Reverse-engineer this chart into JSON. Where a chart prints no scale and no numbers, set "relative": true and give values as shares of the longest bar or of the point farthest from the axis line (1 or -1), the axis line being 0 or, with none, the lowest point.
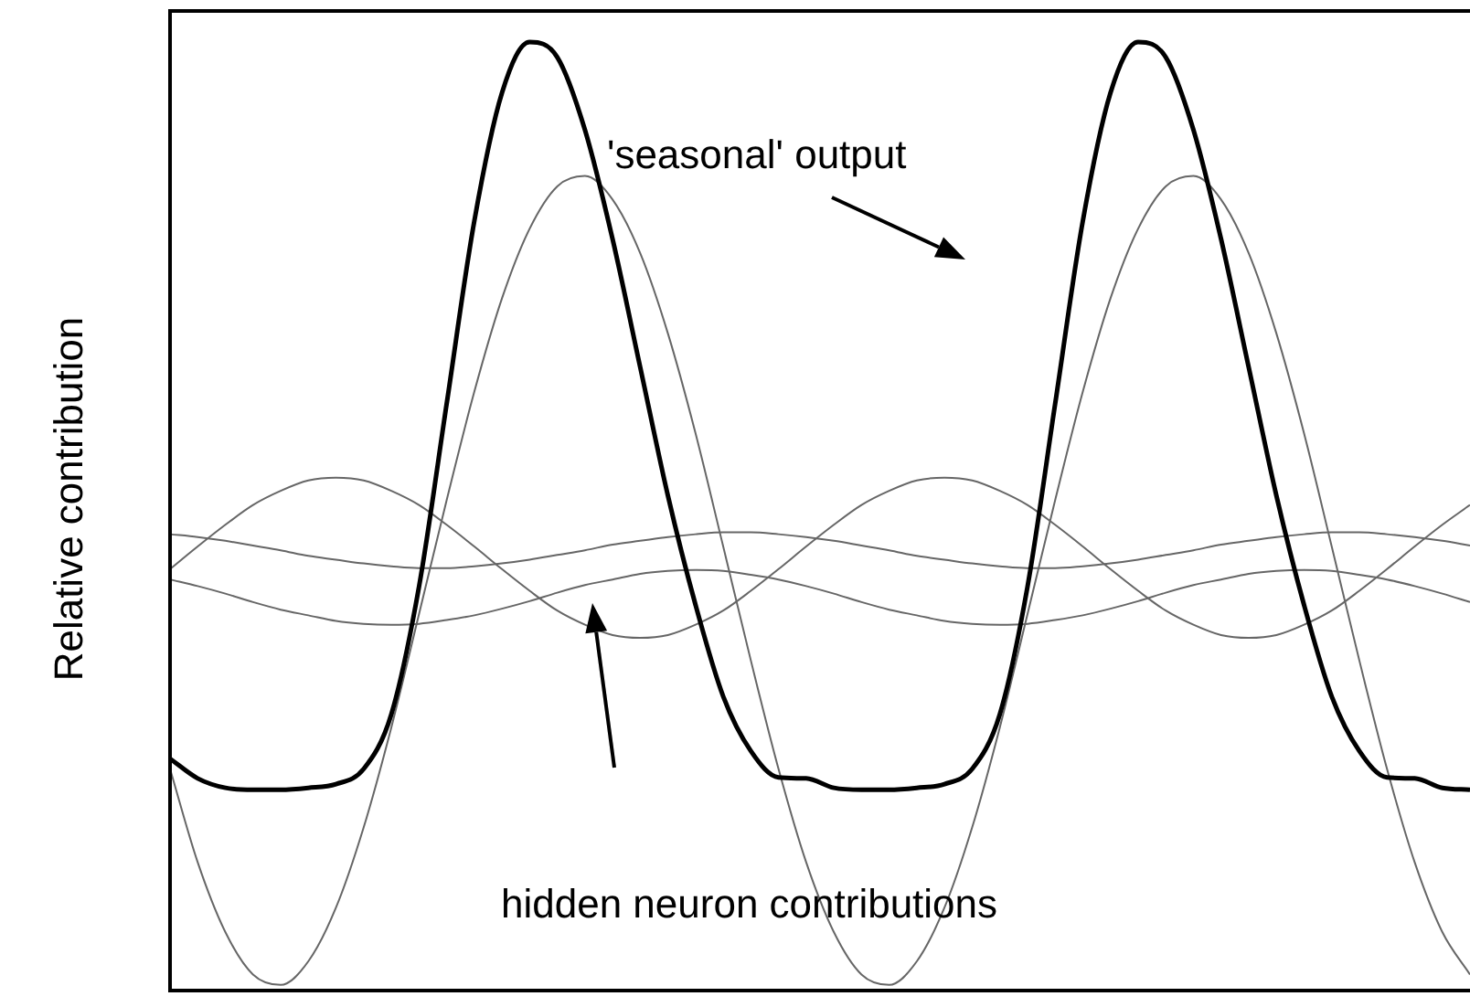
{
  "chart_data": {
    "type": "line",
    "relative": true,
    "ylabel": "Relative contribution",
    "legend": false,
    "grid": false,
    "marker": "none",
    "categories": [
      null,
      null,
      null,
      null,
      null,
      null,
      null,
      null,
      null,
      null,
      null,
      null,
      null,
      null,
      null,
      null,
      null,
      null,
      null,
      null,
      null,
      null,
      null,
      null,
      null,
      null,
      null,
      null,
      null,
      null,
      null,
      null,
      null,
      null,
      null,
      null,
      null,
      null,
      null,
      null,
      null,
      null,
      null,
      null,
      null,
      null,
      null,
      null
    ],
    "annotations": [
      "'seasonal' output",
      "hidden neuron contributions"
    ],
    "series": [
      {
        "color": "#000000",
        "values": [
          0.24,
          0.219,
          0.209,
          0.207,
          0.207,
          0.209,
          0.213,
          0.229,
          0.287,
          0.422,
          0.616,
          0.81,
          0.946,
          1,
          0.984,
          0.907,
          0.791,
          0.655,
          0.519,
          0.403,
          0.306,
          0.248,
          0.22,
          0.219,
          0.209,
          0.207,
          0.207,
          0.209,
          0.213,
          0.229,
          0.287,
          0.422,
          0.616,
          0.81,
          0.946,
          1,
          0.984,
          0.907,
          0.791,
          0.655,
          0.519,
          0.403,
          0.306,
          0.248,
          0.22,
          0.219,
          0.209,
          0.207
        ]
      },
      {
        "color": "#666666",
        "values": [
          0.229,
          0.13,
          0.056,
          0.011,
          0,
          0.025,
          0.082,
          0.167,
          0.273,
          0.393,
          0.514,
          0.629,
          0.728,
          0.802,
          0.847,
          0.858,
          0.833,
          0.776,
          0.691,
          0.585,
          0.465,
          0.344,
          0.229,
          0.13,
          0.056,
          0.011,
          0,
          0.025,
          0.082,
          0.167,
          0.273,
          0.393,
          0.514,
          0.629,
          0.728,
          0.802,
          0.847,
          0.858,
          0.833,
          0.776,
          0.691,
          0.585,
          0.465,
          0.344,
          0.229,
          0.13,
          0.056,
          0.011
        ]
      },
      {
        "color": "#666666",
        "values": [
          0.441,
          0.465,
          0.488,
          0.509,
          0.524,
          0.535,
          0.538,
          0.535,
          0.524,
          0.509,
          0.488,
          0.465,
          0.441,
          0.418,
          0.397,
          0.382,
          0.371,
          0.368,
          0.371,
          0.382,
          0.397,
          0.418,
          0.441,
          0.465,
          0.488,
          0.509,
          0.524,
          0.535,
          0.538,
          0.535,
          0.524,
          0.509,
          0.488,
          0.465,
          0.441,
          0.418,
          0.397,
          0.382,
          0.371,
          0.368,
          0.371,
          0.382,
          0.397,
          0.418,
          0.441,
          0.465,
          0.488,
          0.509
        ]
      },
      {
        "color": "#666666",
        "values": [
          0.478,
          0.475,
          0.471,
          0.466,
          0.461,
          0.455,
          0.451,
          0.447,
          0.444,
          0.442,
          0.442,
          0.444,
          0.447,
          0.451,
          0.456,
          0.461,
          0.467,
          0.471,
          0.475,
          0.478,
          0.48,
          0.48,
          0.478,
          0.475,
          0.471,
          0.466,
          0.461,
          0.455,
          0.451,
          0.447,
          0.444,
          0.442,
          0.442,
          0.444,
          0.447,
          0.451,
          0.456,
          0.461,
          0.467,
          0.471,
          0.475,
          0.478,
          0.48,
          0.48,
          0.478,
          0.475,
          0.471,
          0.466
        ]
      },
      {
        "color": "#666666",
        "values": [
          0.43,
          0.423,
          0.415,
          0.406,
          0.398,
          0.392,
          0.386,
          0.383,
          0.382,
          0.383,
          0.387,
          0.392,
          0.399,
          0.407,
          0.416,
          0.424,
          0.43,
          0.436,
          0.439,
          0.44,
          0.439,
          0.435,
          0.43,
          0.423,
          0.415,
          0.406,
          0.398,
          0.392,
          0.386,
          0.383,
          0.382,
          0.383,
          0.387,
          0.392,
          0.399,
          0.407,
          0.416,
          0.424,
          0.43,
          0.436,
          0.439,
          0.44,
          0.439,
          0.435,
          0.43,
          0.423,
          0.415,
          0.406
        ]
      }
    ]
  }
}
